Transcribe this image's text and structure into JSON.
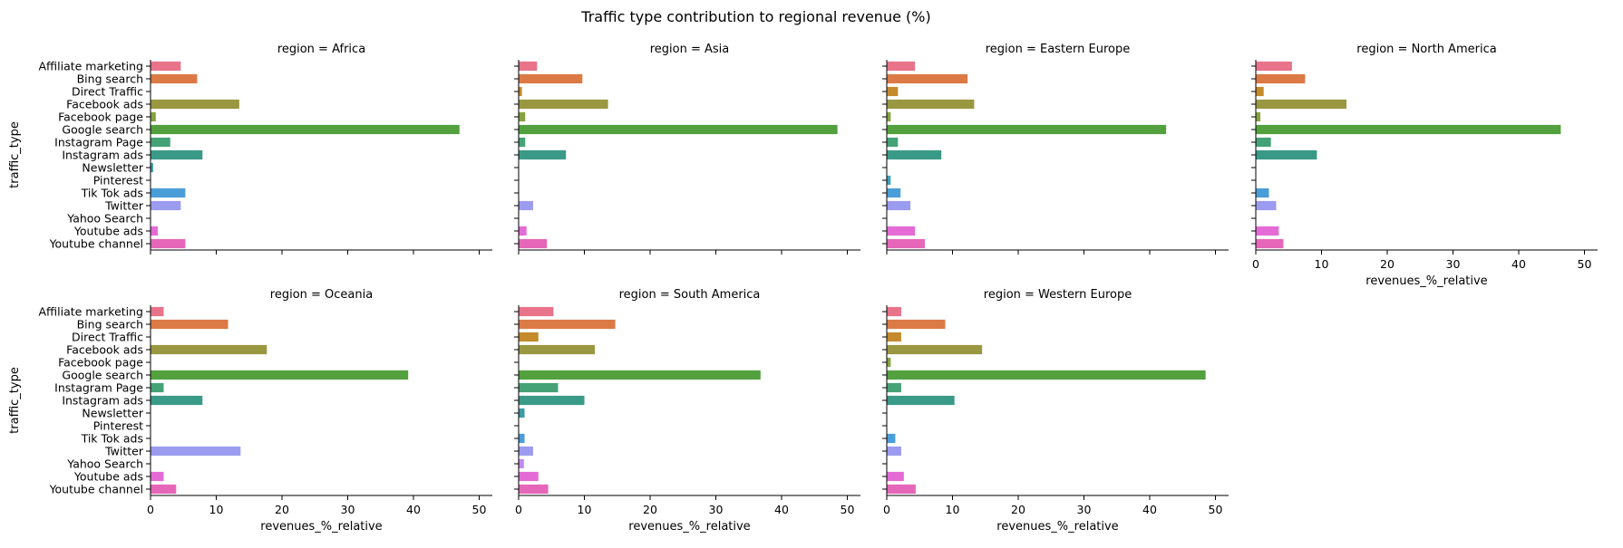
{
  "chart_data": {
    "type": "bar",
    "orientation": "horizontal",
    "title": "Traffic type contribution to regional revenue (%)",
    "xlabel": "revenues_%_relative",
    "ylabel": "traffic_type",
    "xlim": [
      0,
      52
    ],
    "xticks": [
      0,
      10,
      20,
      30,
      40,
      50
    ],
    "categories": [
      "Affiliate marketing",
      "Bing search",
      "Direct Traffic",
      "Facebook ads",
      "Facebook page",
      "Google search",
      "Instagram Page",
      "Instagram ads",
      "Newsletter",
      "Pinterest",
      "Tik Tok ads",
      "Twitter",
      "Yahoo Search",
      "Youtube ads",
      "Youtube channel"
    ],
    "colors": [
      "#e8738a",
      "#dc7a45",
      "#c48a2c",
      "#9a9741",
      "#86a23f",
      "#52a03e",
      "#45a276",
      "#3a9a88",
      "#3c9ca4",
      "#42a1c2",
      "#4a9ed8",
      "#9b9cef",
      "#c18af0",
      "#e46bd6",
      "#e667b9"
    ],
    "panels": [
      {
        "title": "region = Africa",
        "values": [
          4.6,
          7.1,
          0,
          13.5,
          0.8,
          47.0,
          3.0,
          7.9,
          0.4,
          0,
          5.3,
          4.6,
          0,
          1.1,
          5.3
        ]
      },
      {
        "title": "region = Asia",
        "values": [
          2.8,
          9.7,
          0.5,
          13.6,
          1.0,
          48.5,
          1.0,
          7.2,
          0,
          0,
          0,
          2.2,
          0,
          1.2,
          4.3
        ]
      },
      {
        "title": "region = Eastern Europe",
        "values": [
          4.3,
          12.3,
          1.7,
          13.3,
          0.6,
          42.5,
          1.7,
          8.3,
          0,
          0.6,
          2.1,
          3.6,
          0,
          4.3,
          5.8
        ]
      },
      {
        "title": "region = North America",
        "values": [
          5.5,
          7.5,
          1.2,
          13.8,
          0.7,
          46.4,
          2.3,
          9.3,
          0,
          0,
          2.0,
          3.1,
          0,
          3.5,
          4.2
        ]
      },
      {
        "title": "region = Oceania",
        "values": [
          2.0,
          11.8,
          0,
          17.7,
          0,
          39.2,
          2.0,
          7.9,
          0,
          0,
          0,
          13.7,
          0,
          2.0,
          3.9
        ]
      },
      {
        "title": "region = South America",
        "values": [
          5.3,
          14.7,
          3.0,
          11.6,
          0,
          36.8,
          6.0,
          10.0,
          0.9,
          0,
          0.9,
          2.2,
          0.8,
          3.0,
          4.5
        ]
      },
      {
        "title": "region = Western Europe",
        "values": [
          2.2,
          8.9,
          2.2,
          14.5,
          0.6,
          48.5,
          2.2,
          10.3,
          0,
          0,
          1.3,
          2.2,
          0,
          2.6,
          4.4
        ]
      }
    ]
  }
}
